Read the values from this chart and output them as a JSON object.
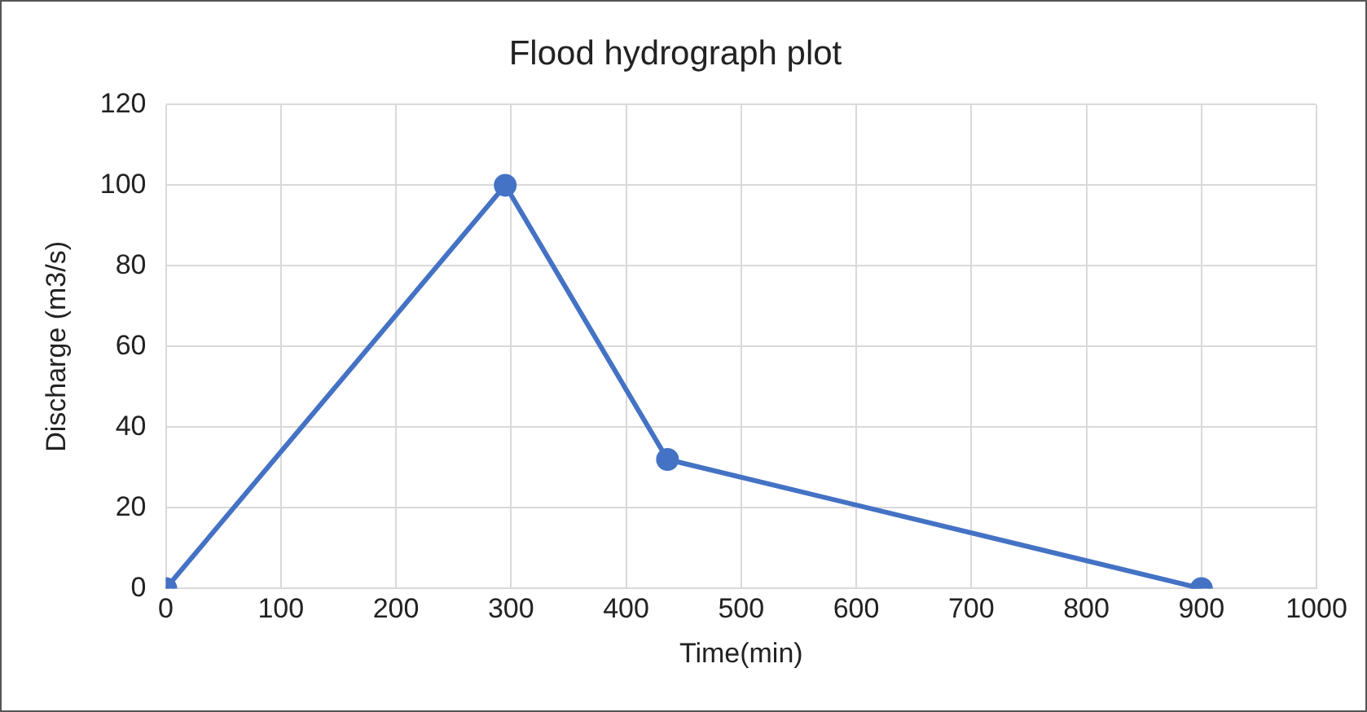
{
  "chart_data": {
    "type": "line",
    "title": "Flood hydrograph plot",
    "xlabel": "Time(min)",
    "ylabel": "Discharge (m3/s)",
    "series": [
      {
        "x": [
          0,
          295,
          436,
          900
        ],
        "values": [
          0,
          100,
          32,
          0
        ],
        "color": "#4472c4"
      }
    ],
    "xlim": [
      0,
      1000
    ],
    "xticks": [
      0,
      100,
      200,
      300,
      400,
      500,
      600,
      700,
      800,
      900,
      1000
    ],
    "ylim": [
      0,
      120
    ],
    "yticks": [
      0,
      20,
      40,
      60,
      80,
      100,
      120
    ],
    "grid": true,
    "legend": false,
    "marker": "circle",
    "line_style": "solid"
  }
}
